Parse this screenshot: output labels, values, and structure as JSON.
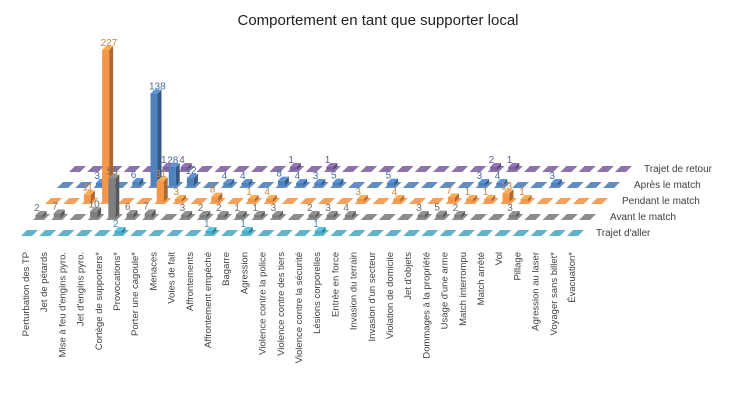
{
  "chart_data": {
    "type": "bar",
    "title": "Comportement en tant que supporter local",
    "categories": [
      "Perturbation des TP",
      "Jet de pétards",
      "Mise à feu d'engins pyro.",
      "Jet d'engins pyro.",
      "Cortège de supporters*",
      "Provocations*",
      "Porter une cagoule*",
      "Menaces",
      "Voies de fait",
      "Affrontements",
      "Affrontement empêché",
      "Bagarre",
      "Agression",
      "Violence contre la police",
      "Violence contre des tiers",
      "Violence contre la sécurité",
      "Lésions corporelles",
      "Entrée en force",
      "Invasion du terrain",
      "Invasion d'un secteur",
      "Violation de domicile",
      "Jet d'objets",
      "Dommages à la propriété",
      "Usage d'une arme",
      "Match interrompu",
      "Match arrêté",
      "Vol",
      "Pillage",
      "Agression au laser",
      "Voyager sans billet*",
      "Évacuation*"
    ],
    "series": [
      {
        "name": "Trajet d'aller",
        "color": "#4bacc6",
        "values": [
          0,
          0,
          0,
          0,
          0,
          2,
          0,
          0,
          0,
          0,
          1,
          0,
          1,
          0,
          0,
          0,
          1,
          0,
          0,
          0,
          0,
          0,
          0,
          0,
          0,
          0,
          0,
          0,
          0,
          0,
          0
        ]
      },
      {
        "name": "Avant le match",
        "color": "#7f7f7f",
        "values": [
          2,
          7,
          0,
          10,
          59,
          6,
          7,
          0,
          3,
          2,
          2,
          1,
          1,
          3,
          0,
          2,
          3,
          4,
          0,
          0,
          0,
          3,
          5,
          2,
          0,
          0,
          3,
          0,
          0,
          0,
          0
        ]
      },
      {
        "name": "Pendant le match",
        "color": "#f79646",
        "values": [
          0,
          0,
          11,
          227,
          0,
          0,
          31,
          3,
          0,
          8,
          0,
          1,
          4,
          0,
          0,
          0,
          0,
          3,
          0,
          4,
          0,
          0,
          7,
          1,
          1,
          13,
          1,
          0,
          0,
          0,
          0
        ]
      },
      {
        "name": "Après le match",
        "color": "#4f81bd",
        "values": [
          0,
          0,
          3,
          0,
          6,
          138,
          28,
          12,
          0,
          4,
          4,
          0,
          8,
          4,
          3,
          5,
          0,
          0,
          5,
          0,
          0,
          0,
          0,
          3,
          4,
          0,
          0,
          3,
          0,
          0,
          0
        ]
      },
      {
        "name": "Trajet de retour",
        "color": "#8064a2",
        "values": [
          0,
          0,
          0,
          0,
          0,
          1,
          4,
          0,
          0,
          0,
          0,
          0,
          1,
          0,
          1,
          0,
          0,
          0,
          0,
          0,
          0,
          0,
          0,
          2,
          1,
          0,
          0,
          0,
          0,
          0,
          0
        ]
      }
    ],
    "data_labels": [
      {
        "series": 0,
        "category": 5,
        "text": "2"
      },
      {
        "series": 0,
        "category": 10,
        "text": "1"
      },
      {
        "series": 0,
        "category": 12,
        "text": "1"
      },
      {
        "series": 0,
        "category": 16,
        "text": "1"
      },
      {
        "series": 1,
        "category": 0,
        "text": "2"
      },
      {
        "series": 1,
        "category": 1,
        "text": "7"
      },
      {
        "series": 1,
        "category": 3,
        "text": "10"
      },
      {
        "series": 1,
        "category": 4,
        "text": "59"
      },
      {
        "series": 1,
        "category": 5,
        "text": "6"
      },
      {
        "series": 1,
        "category": 6,
        "text": "7"
      },
      {
        "series": 1,
        "category": 8,
        "text": "3"
      },
      {
        "series": 1,
        "category": 9,
        "text": "2"
      },
      {
        "series": 1,
        "category": 10,
        "text": "2"
      },
      {
        "series": 1,
        "category": 11,
        "text": "1"
      },
      {
        "series": 1,
        "category": 12,
        "text": "1"
      },
      {
        "series": 1,
        "category": 13,
        "text": "3"
      },
      {
        "series": 1,
        "category": 15,
        "text": "2"
      },
      {
        "series": 1,
        "category": 16,
        "text": "3"
      },
      {
        "series": 1,
        "category": 17,
        "text": "4"
      },
      {
        "series": 1,
        "category": 21,
        "text": "3"
      },
      {
        "series": 1,
        "category": 22,
        "text": "5"
      },
      {
        "series": 1,
        "category": 23,
        "text": "2"
      },
      {
        "series": 1,
        "category": 26,
        "text": "3"
      },
      {
        "series": 2,
        "category": 2,
        "text": "11"
      },
      {
        "series": 2,
        "category": 3,
        "text": "227"
      },
      {
        "series": 2,
        "category": 6,
        "text": "31"
      },
      {
        "series": 2,
        "category": 7,
        "text": "3"
      },
      {
        "series": 2,
        "category": 9,
        "text": "8"
      },
      {
        "series": 2,
        "category": 11,
        "text": "1"
      },
      {
        "series": 2,
        "category": 12,
        "text": "4"
      },
      {
        "series": 2,
        "category": 17,
        "text": "3"
      },
      {
        "series": 2,
        "category": 19,
        "text": "4"
      },
      {
        "series": 2,
        "category": 22,
        "text": "7"
      },
      {
        "series": 2,
        "category": 23,
        "text": "1"
      },
      {
        "series": 2,
        "category": 24,
        "text": "1"
      },
      {
        "series": 2,
        "category": 25,
        "text": "13"
      },
      {
        "series": 2,
        "category": 26,
        "text": "1"
      },
      {
        "series": 3,
        "category": 2,
        "text": "3"
      },
      {
        "series": 3,
        "category": 4,
        "text": "6"
      },
      {
        "series": 3,
        "category": 5,
        "text": "138"
      },
      {
        "series": 3,
        "category": 6,
        "text": "28"
      },
      {
        "series": 3,
        "category": 7,
        "text": "12"
      },
      {
        "series": 3,
        "category": 9,
        "text": "4"
      },
      {
        "series": 3,
        "category": 10,
        "text": "4"
      },
      {
        "series": 3,
        "category": 12,
        "text": "8"
      },
      {
        "series": 3,
        "category": 13,
        "text": "4"
      },
      {
        "series": 3,
        "category": 14,
        "text": "3"
      },
      {
        "series": 3,
        "category": 15,
        "text": "5"
      },
      {
        "series": 3,
        "category": 18,
        "text": "5"
      },
      {
        "series": 3,
        "category": 23,
        "text": "3"
      },
      {
        "series": 3,
        "category": 24,
        "text": "4"
      },
      {
        "series": 3,
        "category": 27,
        "text": "3"
      },
      {
        "series": 4,
        "category": 5,
        "text": "1"
      },
      {
        "series": 4,
        "category": 6,
        "text": "4"
      },
      {
        "series": 4,
        "category": 12,
        "text": "1"
      },
      {
        "series": 4,
        "category": 14,
        "text": "1"
      },
      {
        "series": 4,
        "category": 23,
        "text": "2"
      },
      {
        "series": 4,
        "category": 24,
        "text": "1"
      }
    ],
    "xlabel": "",
    "ylabel": "",
    "grid": false,
    "legend": "none",
    "style": "3d-column"
  }
}
